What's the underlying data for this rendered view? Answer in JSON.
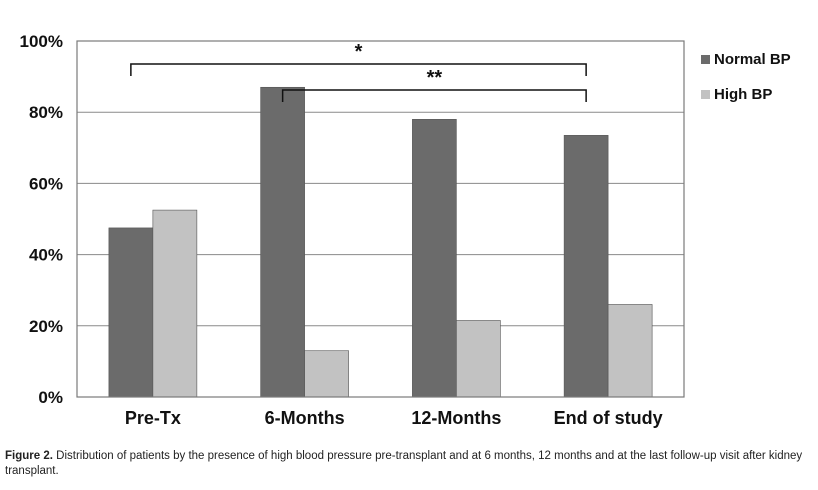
{
  "chart_data": {
    "type": "bar",
    "categories": [
      "Pre-Tx",
      "6-Months",
      "12-Months",
      "End of study"
    ],
    "series": [
      {
        "name": "Normal BP",
        "color": "#6b6b6b",
        "values": [
          47.5,
          87,
          78,
          73.5
        ]
      },
      {
        "name": "High BP",
        "color": "#c2c2c2",
        "values": [
          52.5,
          13,
          21.5,
          26
        ]
      }
    ],
    "ylim": [
      0,
      100
    ],
    "yticks": [
      "0%",
      "20%",
      "40%",
      "60%",
      "80%",
      "100%"
    ],
    "ytick_values": [
      0,
      20,
      40,
      60,
      80,
      100
    ],
    "grid": true,
    "legend_position": "right",
    "annotations": [
      {
        "label": "*",
        "from_category": "Pre-Tx",
        "to_category": "End of study"
      },
      {
        "label": "**",
        "from_category": "6-Months",
        "to_category": "End of study"
      }
    ]
  },
  "caption": {
    "label": "Figure 2.",
    "text": " Distribution of patients by the presence of high blood pressure pre-transplant and at 6 months, 12 months and at the last follow-up visit after kidney transplant."
  }
}
